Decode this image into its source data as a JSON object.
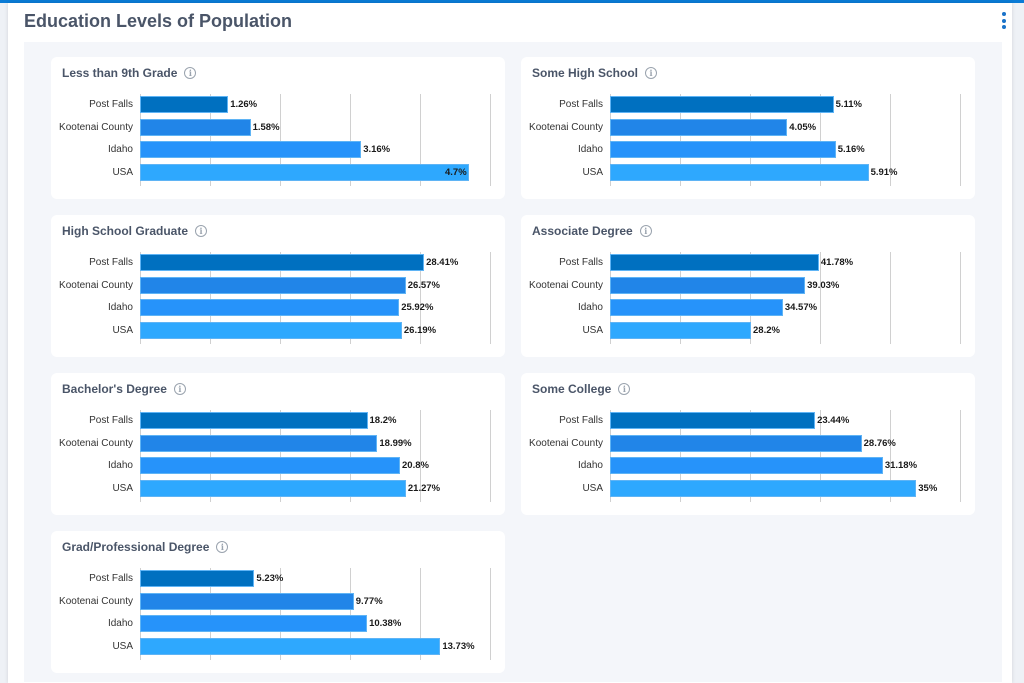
{
  "page": {
    "title": "Education Levels of Population",
    "menu_icon": "kebab-menu-icon"
  },
  "colors": {
    "Post Falls": "#0070c0",
    "Kootenai County": "#2185e8",
    "Idaho": "#2693fa",
    "USA": "#2ea8fe"
  },
  "chart_data": [
    {
      "type": "bar",
      "orientation": "horizontal",
      "title": "Less than 9th Grade",
      "categories": [
        "Post Falls",
        "Kootenai County",
        "Idaho",
        "USA"
      ],
      "values": [
        1.26,
        1.58,
        3.16,
        4.7
      ],
      "labels": [
        "1.26%",
        "1.58%",
        "3.16%",
        "4.7%"
      ],
      "xlim": [
        0,
        5
      ],
      "grid": true
    },
    {
      "type": "bar",
      "orientation": "horizontal",
      "title": "Some High School",
      "categories": [
        "Post Falls",
        "Kootenai County",
        "Idaho",
        "USA"
      ],
      "values": [
        5.11,
        4.05,
        5.16,
        5.91
      ],
      "labels": [
        "5.11%",
        "4.05%",
        "5.16%",
        "5.91%"
      ],
      "xlim": [
        0,
        8
      ],
      "grid": true
    },
    {
      "type": "bar",
      "orientation": "horizontal",
      "title": "High School Graduate",
      "categories": [
        "Post Falls",
        "Kootenai County",
        "Idaho",
        "USA"
      ],
      "values": [
        28.41,
        26.57,
        25.92,
        26.19
      ],
      "labels": [
        "28.41%",
        "26.57%",
        "25.92%",
        "26.19%"
      ],
      "xlim": [
        0,
        35
      ],
      "grid": true
    },
    {
      "type": "bar",
      "orientation": "horizontal",
      "title": "Associate Degree",
      "categories": [
        "Post Falls",
        "Kootenai County",
        "Idaho",
        "USA"
      ],
      "values": [
        41.78,
        39.03,
        34.57,
        28.2
      ],
      "labels": [
        "41.78%",
        "39.03%",
        "34.57%",
        "28.2%"
      ],
      "xlim": [
        0,
        70
      ],
      "grid": true
    },
    {
      "type": "bar",
      "orientation": "horizontal",
      "title": "Bachelor's Degree",
      "categories": [
        "Post Falls",
        "Kootenai County",
        "Idaho",
        "USA"
      ],
      "values": [
        18.2,
        18.99,
        20.8,
        21.27
      ],
      "labels": [
        "18.2%",
        "18.99%",
        "20.8%",
        "21.27%"
      ],
      "xlim": [
        0,
        28
      ],
      "grid": true
    },
    {
      "type": "bar",
      "orientation": "horizontal",
      "title": "Some College",
      "categories": [
        "Post Falls",
        "Kootenai County",
        "Idaho",
        "USA"
      ],
      "values": [
        23.44,
        28.76,
        31.18,
        35
      ],
      "labels": [
        "23.44%",
        "28.76%",
        "31.18%",
        "35%"
      ],
      "xlim": [
        0,
        40
      ],
      "grid": true
    },
    {
      "type": "bar",
      "orientation": "horizontal",
      "title": "Grad/Professional Degree",
      "categories": [
        "Post Falls",
        "Kootenai County",
        "Idaho",
        "USA"
      ],
      "values": [
        5.23,
        9.77,
        10.38,
        13.73
      ],
      "labels": [
        "5.23%",
        "9.77%",
        "10.38%",
        "13.73%"
      ],
      "xlim": [
        0,
        16
      ],
      "grid": true
    }
  ]
}
